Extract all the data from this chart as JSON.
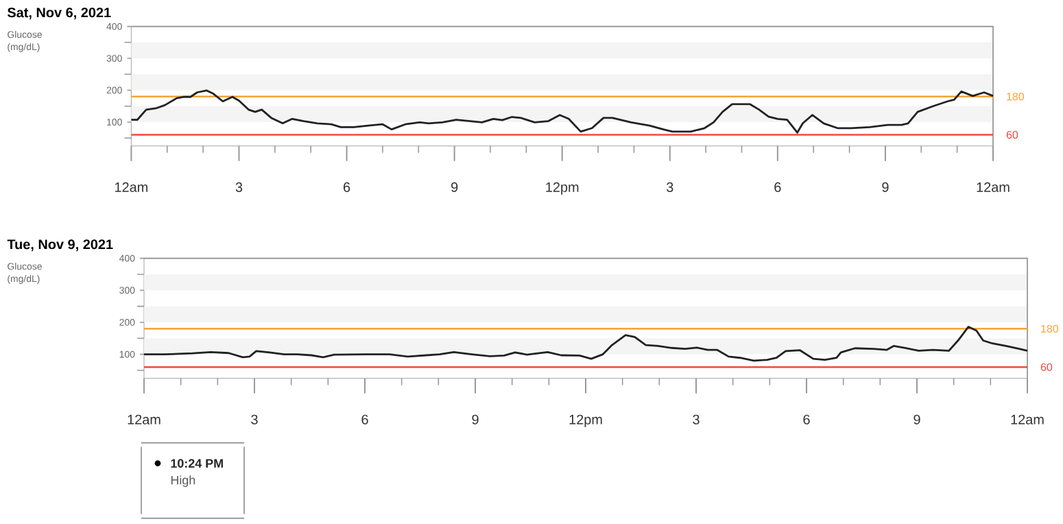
{
  "chart_data": [
    {
      "type": "line",
      "title": "Sat, Nov 6, 2021",
      "ylabel": "Glucose (mg/dL)",
      "series": [
        {
          "color": "#222222",
          "x": [
            "2021-11-06T00:00",
            "2021-11-06T00:10",
            "2021-11-06T00:25",
            "2021-11-06T00:41",
            "2021-11-06T00:56",
            "2021-11-06T01:16",
            "2021-11-06T01:27",
            "2021-11-06T01:39",
            "2021-11-06T01:50",
            "2021-11-06T02:06",
            "2021-11-06T02:17",
            "2021-11-06T02:33",
            "2021-11-06T02:49",
            "2021-11-06T03:00",
            "2021-11-06T03:16",
            "2021-11-06T03:27",
            "2021-11-06T03:38",
            "2021-11-06T03:54",
            "2021-11-06T04:13",
            "2021-11-06T04:29",
            "2021-11-06T04:48",
            "2021-11-06T05:11",
            "2021-11-06T05:34",
            "2021-11-06T05:50",
            "2021-11-06T06:12",
            "2021-11-06T06:36",
            "2021-11-06T07:00",
            "2021-11-06T07:15",
            "2021-11-06T07:38",
            "2021-11-06T08:02",
            "2021-11-06T08:17",
            "2021-11-06T08:40",
            "2021-11-06T09:03",
            "2021-11-06T09:26",
            "2021-11-06T09:46",
            "2021-11-06T10:05",
            "2021-11-06T10:20",
            "2021-11-06T10:36",
            "2021-11-06T10:51",
            "2021-11-06T11:14",
            "2021-11-06T11:37",
            "2021-11-06T11:56",
            "2021-11-06T12:11",
            "2021-11-06T12:31",
            "2021-11-06T12:50",
            "2021-11-06T13:09",
            "2021-11-06T13:24",
            "2021-11-06T13:55",
            "2021-11-06T14:26",
            "2021-11-06T14:49",
            "2021-11-06T15:04",
            "2021-11-06T15:35",
            "2021-11-06T15:58",
            "2021-11-06T16:13",
            "2021-11-06T16:28",
            "2021-11-06T16:44",
            "2021-11-06T16:59",
            "2021-11-06T17:14",
            "2021-11-06T17:29",
            "2021-11-06T17:45",
            "2021-11-06T18:00",
            "2021-11-06T18:16",
            "2021-11-06T18:33",
            "2021-11-06T18:42",
            "2021-11-06T18:58",
            "2021-11-06T19:17",
            "2021-11-06T19:40",
            "2021-11-06T20:03",
            "2021-11-06T20:34",
            "2021-11-06T21:04",
            "2021-11-06T21:27",
            "2021-11-06T21:38",
            "2021-11-06T21:54",
            "2021-11-06T22:20",
            "2021-11-06T22:44",
            "2021-11-06T22:55",
            "2021-11-06T23:07",
            "2021-11-06T23:26",
            "2021-11-06T23:45",
            "2021-11-07T00:00"
          ],
          "values": [
            107,
            107,
            139,
            143,
            153,
            175,
            179,
            179,
            193,
            199,
            189,
            165,
            179,
            167,
            139,
            132,
            139,
            113,
            96,
            110,
            103,
            96,
            93,
            84,
            84,
            89,
            93,
            77,
            93,
            99,
            96,
            99,
            107,
            103,
            99,
            110,
            106,
            116,
            113,
            99,
            103,
            122,
            110,
            70,
            81,
            113,
            113,
            99,
            89,
            77,
            70,
            70,
            81,
            99,
            132,
            156,
            156,
            156,
            139,
            117,
            110,
            107,
            67,
            96,
            122,
            96,
            81,
            81,
            84,
            91,
            91,
            96,
            132,
            150,
            165,
            170,
            196,
            182,
            193,
            182
          ]
        }
      ],
      "xlim": [
        "2021-11-06T00:00",
        "2021-11-07T00:00"
      ],
      "xticks": [
        {
          "value": "2021-11-06T00:00",
          "label": "12am"
        },
        {
          "value": "2021-11-06T01:00",
          "label": null
        },
        {
          "value": "2021-11-06T02:00",
          "label": null
        },
        {
          "value": "2021-11-06T03:00",
          "label": "3"
        },
        {
          "value": "2021-11-06T04:00",
          "label": null
        },
        {
          "value": "2021-11-06T05:00",
          "label": null
        },
        {
          "value": "2021-11-06T06:00",
          "label": "6"
        },
        {
          "value": "2021-11-06T07:00",
          "label": null
        },
        {
          "value": "2021-11-06T08:00",
          "label": null
        },
        {
          "value": "2021-11-06T09:00",
          "label": "9"
        },
        {
          "value": "2021-11-06T10:00",
          "label": null
        },
        {
          "value": "2021-11-06T11:00",
          "label": null
        },
        {
          "value": "2021-11-06T12:00",
          "label": "12pm"
        },
        {
          "value": "2021-11-06T13:00",
          "label": null
        },
        {
          "value": "2021-11-06T14:00",
          "label": null
        },
        {
          "value": "2021-11-06T15:00",
          "label": "3"
        },
        {
          "value": "2021-11-06T16:00",
          "label": null
        },
        {
          "value": "2021-11-06T17:00",
          "label": null
        },
        {
          "value": "2021-11-06T18:00",
          "label": "6"
        },
        {
          "value": "2021-11-06T19:00",
          "label": null
        },
        {
          "value": "2021-11-06T20:00",
          "label": null
        },
        {
          "value": "2021-11-06T21:00",
          "label": "9"
        },
        {
          "value": "2021-11-06T22:00",
          "label": null
        },
        {
          "value": "2021-11-06T23:00",
          "label": null
        },
        {
          "value": "2021-11-07T00:00",
          "label": "12am"
        }
      ],
      "ylim": [
        25,
        400
      ],
      "yticks": [
        {
          "value": 50,
          "label": null
        },
        100,
        {
          "value": 150,
          "label": null
        },
        200,
        {
          "value": 250,
          "label": null
        },
        300,
        {
          "value": 350,
          "label": null
        },
        400
      ],
      "bands": [
        {
          "axis": "y",
          "from": 100,
          "to": 150,
          "color": "#f4f4f4"
        },
        {
          "axis": "y",
          "from": 200,
          "to": 250,
          "color": "#f4f4f4"
        },
        {
          "axis": "y",
          "from": 300,
          "to": 350,
          "color": "#f4f4f4"
        }
      ],
      "ref_lines": [
        {
          "axis": "y",
          "value": 180,
          "label": "180",
          "color": "#f5a43a"
        },
        {
          "axis": "y",
          "value": 60,
          "label": "60",
          "color": "#ee4b3f"
        }
      ]
    },
    {
      "type": "line",
      "title": "Tue, Nov 9, 2021",
      "ylabel": "Glucose (mg/dL)",
      "series": [
        {
          "color": "#222222",
          "x": [
            "2021-11-09T00:00",
            "2021-11-09T00:34",
            "2021-11-09T01:19",
            "2021-11-09T01:49",
            "2021-11-09T02:18",
            "2021-11-09T02:41",
            "2021-11-09T02:52",
            "2021-11-09T03:03",
            "2021-11-09T03:25",
            "2021-11-09T03:48",
            "2021-11-09T04:10",
            "2021-11-09T04:33",
            "2021-11-09T04:52",
            "2021-11-09T05:10",
            "2021-11-09T06:02",
            "2021-11-09T06:40",
            "2021-11-09T07:10",
            "2021-11-09T07:40",
            "2021-11-09T08:02",
            "2021-11-09T08:25",
            "2021-11-09T08:54",
            "2021-11-09T09:24",
            "2021-11-09T09:47",
            "2021-11-09T10:05",
            "2021-11-09T10:24",
            "2021-11-09T10:58",
            "2021-11-09T11:20",
            "2021-11-09T11:50",
            "2021-11-09T12:09",
            "2021-11-09T12:28",
            "2021-11-09T12:43",
            "2021-11-09T13:05",
            "2021-11-09T13:20",
            "2021-11-09T13:38",
            "2021-11-09T13:58",
            "2021-11-09T14:20",
            "2021-11-09T14:42",
            "2021-11-09T15:01",
            "2021-11-09T15:19",
            "2021-11-09T15:34",
            "2021-11-09T15:53",
            "2021-11-09T16:12",
            "2021-11-09T16:34",
            "2021-11-09T16:56",
            "2021-11-09T17:11",
            "2021-11-09T17:26",
            "2021-11-09T17:49",
            "2021-11-09T18:11",
            "2021-11-09T18:30",
            "2021-11-09T18:49",
            "2021-11-09T18:56",
            "2021-11-09T19:19",
            "2021-11-09T19:49",
            "2021-11-09T20:11",
            "2021-11-09T20:22",
            "2021-11-09T20:41",
            "2021-11-09T21:03",
            "2021-11-09T21:26",
            "2021-11-09T21:52",
            "2021-11-09T22:07",
            "2021-11-09T22:24",
            "2021-11-09T22:37",
            "2021-11-09T22:48",
            "2021-11-09T23:03",
            "2021-11-09T23:25",
            "2021-11-09T23:47",
            "2021-11-10T00:00"
          ],
          "values": [
            100,
            100,
            103,
            107,
            104,
            91,
            93,
            110,
            106,
            100,
            100,
            97,
            91,
            99,
            100,
            100,
            93,
            97,
            100,
            107,
            100,
            94,
            96,
            106,
            99,
            107,
            97,
            96,
            86,
            100,
            129,
            160,
            154,
            129,
            126,
            120,
            117,
            121,
            114,
            114,
            93,
            89,
            80,
            83,
            89,
            110,
            113,
            86,
            83,
            89,
            106,
            119,
            117,
            114,
            126,
            120,
            111,
            114,
            111,
            143,
            186,
            174,
            143,
            134,
            126,
            117,
            111
          ]
        }
      ],
      "xlim": [
        "2021-11-09T00:00",
        "2021-11-10T00:00"
      ],
      "xticks": [
        {
          "value": "2021-11-09T00:00",
          "label": "12am"
        },
        {
          "value": "2021-11-09T01:00",
          "label": null
        },
        {
          "value": "2021-11-09T02:00",
          "label": null
        },
        {
          "value": "2021-11-09T03:00",
          "label": "3"
        },
        {
          "value": "2021-11-09T04:00",
          "label": null
        },
        {
          "value": "2021-11-09T05:00",
          "label": null
        },
        {
          "value": "2021-11-09T06:00",
          "label": "6"
        },
        {
          "value": "2021-11-09T07:00",
          "label": null
        },
        {
          "value": "2021-11-09T08:00",
          "label": null
        },
        {
          "value": "2021-11-09T09:00",
          "label": "9"
        },
        {
          "value": "2021-11-09T10:00",
          "label": null
        },
        {
          "value": "2021-11-09T11:00",
          "label": null
        },
        {
          "value": "2021-11-09T12:00",
          "label": "12pm"
        },
        {
          "value": "2021-11-09T13:00",
          "label": null
        },
        {
          "value": "2021-11-09T14:00",
          "label": null
        },
        {
          "value": "2021-11-09T15:00",
          "label": "3"
        },
        {
          "value": "2021-11-09T16:00",
          "label": null
        },
        {
          "value": "2021-11-09T17:00",
          "label": null
        },
        {
          "value": "2021-11-09T18:00",
          "label": "6"
        },
        {
          "value": "2021-11-09T19:00",
          "label": null
        },
        {
          "value": "2021-11-09T20:00",
          "label": null
        },
        {
          "value": "2021-11-09T21:00",
          "label": "9"
        },
        {
          "value": "2021-11-09T22:00",
          "label": null
        },
        {
          "value": "2021-11-09T23:00",
          "label": null
        },
        {
          "value": "2021-11-10T00:00",
          "label": "12am"
        }
      ],
      "ylim": [
        25,
        400
      ],
      "yticks": [
        {
          "value": 50,
          "label": null
        },
        100,
        {
          "value": 150,
          "label": null
        },
        200,
        {
          "value": 250,
          "label": null
        },
        300,
        {
          "value": 350,
          "label": null
        },
        400
      ],
      "bands": [
        {
          "axis": "y",
          "from": 100,
          "to": 150,
          "color": "#f4f4f4"
        },
        {
          "axis": "y",
          "from": 200,
          "to": 250,
          "color": "#f4f4f4"
        },
        {
          "axis": "y",
          "from": 300,
          "to": 350,
          "color": "#f4f4f4"
        }
      ],
      "ref_lines": [
        {
          "axis": "y",
          "value": 180,
          "label": "180",
          "color": "#f5a43a"
        },
        {
          "axis": "y",
          "value": 60,
          "label": "60",
          "color": "#ee4b3f"
        }
      ],
      "annotations": [
        "10:24 PM",
        "High"
      ]
    }
  ]
}
